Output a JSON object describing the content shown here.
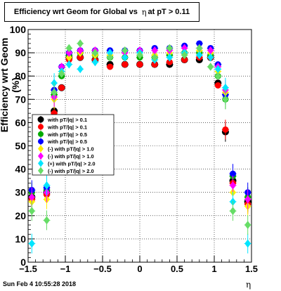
{
  "title": {
    "prefix": "Efficiency wrt Geom for Global vs",
    "eta": "η",
    "suffix": "at pT > 0.11"
  },
  "ylabel": "Efficiency wrt Geom (%)",
  "xlabel": "η",
  "footer": "Sun Feb  4 10:55:28 2018",
  "chart_data": {
    "type": "scatter",
    "xlim": [
      -1.5,
      1.5
    ],
    "ylim": [
      0,
      100
    ],
    "xticks": [
      -1.5,
      -1,
      -0.5,
      0,
      0.5,
      1,
      1.5
    ],
    "xtick_labels": [
      "−1.5",
      "−1",
      "−0.5",
      "0",
      "0.5",
      "1",
      "1.5"
    ],
    "yticks": [
      0,
      10,
      20,
      30,
      40,
      50,
      60,
      70,
      80,
      90,
      100
    ],
    "grid": true,
    "legend_position": "left-middle",
    "series": [
      {
        "name": "with pT/|q| > 0.1",
        "color": "#000000",
        "marker": "circle",
        "x": [
          -1.45,
          -1.25,
          -1.15,
          -1.05,
          -0.95,
          -0.8,
          -0.6,
          -0.4,
          -0.2,
          0.0,
          0.2,
          0.4,
          0.6,
          0.8,
          0.95,
          1.05,
          1.15,
          1.25,
          1.45
        ],
        "y": [
          28,
          30,
          65,
          75,
          88,
          88,
          87,
          85,
          85,
          85,
          85,
          85,
          87,
          87,
          88,
          77,
          56,
          35,
          26
        ]
      },
      {
        "name": "with pT/|q| > 0.1",
        "color": "#ff0000",
        "marker": "circle",
        "x": [
          -1.45,
          -1.25,
          -1.15,
          -1.05,
          -0.95,
          -0.8,
          -0.6,
          -0.4,
          -0.2,
          0.0,
          0.2,
          0.4,
          0.6,
          0.8,
          0.95,
          1.05,
          1.15,
          1.25,
          1.45
        ],
        "y": [
          27,
          29,
          64,
          75,
          87,
          88,
          87,
          84,
          85,
          85,
          85,
          86,
          87,
          88,
          88,
          76,
          57,
          34,
          25
        ]
      },
      {
        "name": "with pT/|q| > 0.5",
        "color": "#00aa00",
        "marker": "circle",
        "x": [
          -1.45,
          -1.25,
          -1.15,
          -1.05,
          -0.95,
          -0.8,
          -0.6,
          -0.4,
          -0.2,
          0.0,
          0.2,
          0.4,
          0.6,
          0.8,
          0.95,
          1.05,
          1.15,
          1.25,
          1.45
        ],
        "y": [
          30,
          31,
          72,
          80,
          89,
          90,
          89,
          88,
          88,
          88,
          88,
          89,
          90,
          90,
          89,
          80,
          70,
          37,
          28
        ]
      },
      {
        "name": "with pT/|q| > 0.5",
        "color": "#0000ff",
        "marker": "circle",
        "x": [
          -1.45,
          -1.25,
          -1.15,
          -1.05,
          -0.95,
          -0.8,
          -0.6,
          -0.4,
          -0.2,
          0.0,
          0.2,
          0.4,
          0.6,
          0.8,
          0.95,
          1.05,
          1.15,
          1.25,
          1.45
        ],
        "y": [
          31,
          32,
          74,
          84,
          90,
          91,
          91,
          91,
          91,
          91,
          92,
          92,
          93,
          94,
          92,
          85,
          72,
          38,
          30
        ]
      },
      {
        "name": "(-) with pT/|q| > 1.0",
        "color": "#ffee00",
        "marker": "diamond",
        "x": [
          -1.45,
          -1.25,
          -1.15,
          -1.05,
          -0.95,
          -0.8,
          -0.6,
          -0.4,
          -0.2,
          0.0,
          0.2,
          0.4,
          0.6,
          0.8,
          0.95,
          1.05,
          1.15,
          1.25,
          1.45
        ],
        "y": [
          26,
          27,
          70,
          82,
          88,
          90,
          89,
          89,
          88,
          89,
          89,
          90,
          90,
          91,
          90,
          82,
          73,
          30,
          24
        ]
      },
      {
        "name": "(-) with pT/|q| > 1.0",
        "color": "#ff00ff",
        "marker": "diamond",
        "x": [
          -1.45,
          -1.25,
          -1.15,
          -1.05,
          -0.95,
          -0.8,
          -0.6,
          -0.4,
          -0.2,
          0.0,
          0.2,
          0.4,
          0.6,
          0.8,
          0.95,
          1.05,
          1.15,
          1.25,
          1.45
        ],
        "y": [
          28,
          30,
          71,
          84,
          90,
          91,
          91,
          90,
          90,
          91,
          91,
          91,
          92,
          92,
          91,
          84,
          74,
          33,
          27
        ]
      },
      {
        "name": "(+) with pT/|q| > 2.0",
        "color": "#00e5ff",
        "marker": "diamond",
        "x": [
          -1.45,
          -1.25,
          -1.15,
          -1.05,
          -0.95,
          -0.8,
          -0.6,
          -0.4,
          -0.2,
          0.0,
          0.2,
          0.4,
          0.6,
          0.8,
          0.95,
          1.05,
          1.15,
          1.25,
          1.45
        ],
        "y": [
          8,
          33,
          77,
          82,
          85,
          83,
          86,
          90,
          88,
          90,
          87,
          88,
          90,
          89,
          88,
          83,
          75,
          26,
          8
        ]
      },
      {
        "name": "(-) with pT/|q| > 2.0",
        "color": "#66dd66",
        "marker": "diamond",
        "x": [
          -1.45,
          -1.25,
          -1.15,
          -1.05,
          -0.95,
          -0.8,
          -0.6,
          -0.4,
          -0.2,
          0.0,
          0.2,
          0.4,
          0.6,
          0.8,
          0.95,
          1.05,
          1.15,
          1.25,
          1.45
        ],
        "y": [
          22,
          18,
          73,
          81,
          92,
          94,
          90,
          88,
          91,
          89,
          88,
          92,
          89,
          92,
          84,
          80,
          70,
          22,
          16
        ]
      }
    ]
  }
}
